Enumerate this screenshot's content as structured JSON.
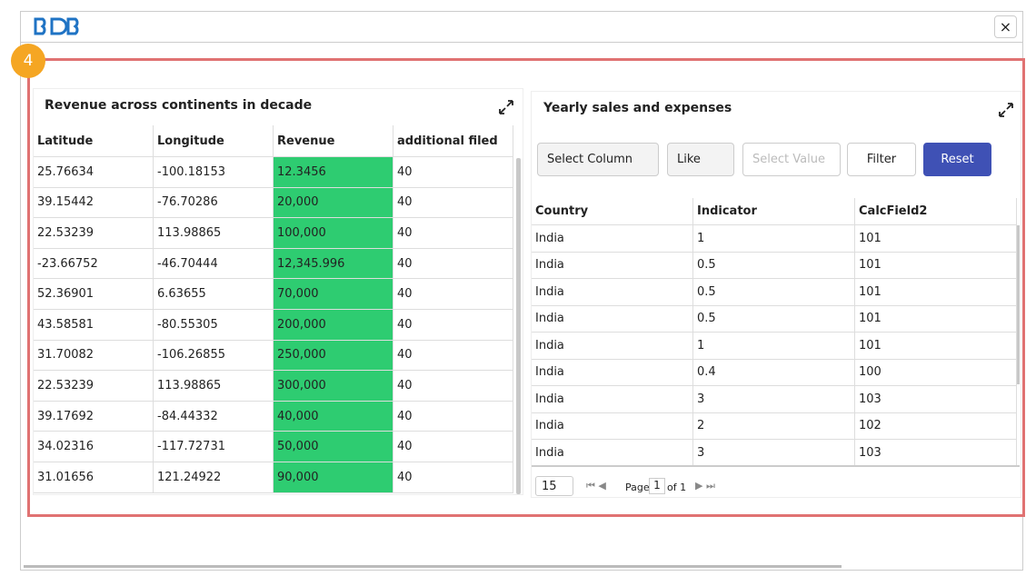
{
  "header": {
    "close": "×"
  },
  "badge": "4",
  "left_panel": {
    "title": "Revenue across continents in decade",
    "table": {
      "columns": [
        "Latitude",
        "Longitude",
        "Revenue",
        "additional filed"
      ],
      "rows": [
        [
          "25.76634",
          "-100.18153",
          "12.3456",
          "40"
        ],
        [
          "39.15442",
          "-76.70286",
          "20,000",
          "40"
        ],
        [
          "22.53239",
          "113.98865",
          "100,000",
          "40"
        ],
        [
          "-23.66752",
          "-46.70444",
          "12,345.996",
          "40"
        ],
        [
          "52.36901",
          "6.63655",
          "70,000",
          "40"
        ],
        [
          "43.58581",
          "-80.55305",
          "200,000",
          "40"
        ],
        [
          "31.70082",
          "-106.26855",
          "250,000",
          "40"
        ],
        [
          "22.53239",
          "113.98865",
          "300,000",
          "40"
        ],
        [
          "39.17692",
          "-84.44332",
          "40,000",
          "40"
        ],
        [
          "34.02316",
          "-117.72731",
          "50,000",
          "40"
        ],
        [
          "31.01656",
          "121.24922",
          "90,000",
          "40"
        ]
      ]
    }
  },
  "right_panel": {
    "title": "Yearly sales and expenses",
    "filter": {
      "column": "Select Column",
      "operator": "Like",
      "value_placeholder": "Select Value",
      "filter_button": "Filter",
      "reset_button": "Reset"
    },
    "table": {
      "columns": [
        "Country",
        "Indicator",
        "CalcField2"
      ],
      "rows": [
        [
          "India",
          "1",
          "101"
        ],
        [
          "India",
          "0.5",
          "101"
        ],
        [
          "India",
          "0.5",
          "101"
        ],
        [
          "India",
          "0.5",
          "101"
        ],
        [
          "India",
          "1",
          "101"
        ],
        [
          "India",
          "0.4",
          "100"
        ],
        [
          "India",
          "3",
          "103"
        ],
        [
          "India",
          "2",
          "102"
        ],
        [
          "India",
          "3",
          "103"
        ]
      ]
    },
    "pager": {
      "page_size": "15",
      "page_label": "Page",
      "page": "1",
      "of_label": "of 1"
    }
  }
}
